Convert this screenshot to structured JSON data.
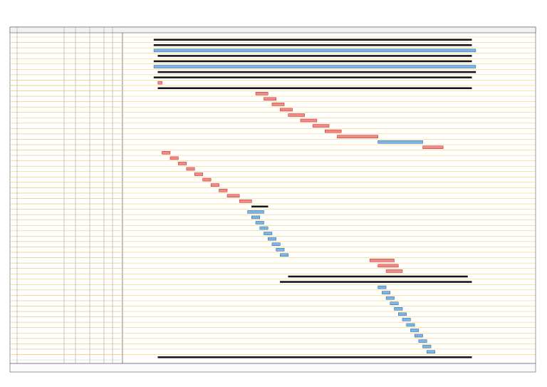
{
  "gantt": {
    "timeline": [
      0,
      100
    ],
    "colors": {
      "summary": "#1a1a1a",
      "critical": "#f08a8a",
      "normal": "#7fb3e0"
    },
    "strokes": {
      "summary": "#000000",
      "critical": "#c41e1e",
      "normal": "#1f5fa0"
    },
    "tasks": [
      {
        "start": 7,
        "end": 85,
        "kind": "summary"
      },
      {
        "start": 7,
        "end": 85,
        "kind": "summary"
      },
      {
        "start": 7,
        "end": 86,
        "kind": "normal"
      },
      {
        "start": 8,
        "end": 85,
        "kind": "summary"
      },
      {
        "start": 7,
        "end": 85,
        "kind": "summary"
      },
      {
        "start": 7,
        "end": 86,
        "kind": "normal"
      },
      {
        "start": 8,
        "end": 86,
        "kind": "summary"
      },
      {
        "start": 7,
        "end": 85,
        "kind": "summary"
      },
      {
        "start": 8,
        "end": 9,
        "kind": "critical"
      },
      {
        "start": 8,
        "end": 85,
        "kind": "summary"
      },
      {
        "start": 32,
        "end": 35,
        "kind": "critical"
      },
      {
        "start": 34,
        "end": 37,
        "kind": "critical"
      },
      {
        "start": 36,
        "end": 39,
        "kind": "critical"
      },
      {
        "start": 38,
        "end": 41,
        "kind": "critical"
      },
      {
        "start": 40,
        "end": 44,
        "kind": "critical"
      },
      {
        "start": 43,
        "end": 47,
        "kind": "critical"
      },
      {
        "start": 46,
        "end": 50,
        "kind": "critical"
      },
      {
        "start": 49,
        "end": 53,
        "kind": "critical"
      },
      {
        "start": 52,
        "end": 62,
        "kind": "critical"
      },
      {
        "start": 62,
        "end": 73,
        "kind": "normal"
      },
      {
        "start": 73,
        "end": 78,
        "kind": "critical"
      },
      {
        "start": 9,
        "end": 11,
        "kind": "critical"
      },
      {
        "start": 11,
        "end": 13,
        "kind": "critical"
      },
      {
        "start": 13,
        "end": 15,
        "kind": "critical"
      },
      {
        "start": 15,
        "end": 17,
        "kind": "critical"
      },
      {
        "start": 17,
        "end": 19,
        "kind": "critical"
      },
      {
        "start": 19,
        "end": 21,
        "kind": "critical"
      },
      {
        "start": 21,
        "end": 23,
        "kind": "critical"
      },
      {
        "start": 23,
        "end": 25,
        "kind": "critical"
      },
      {
        "start": 25,
        "end": 28,
        "kind": "critical"
      },
      {
        "start": 28,
        "end": 31,
        "kind": "critical"
      },
      {
        "start": 31,
        "end": 35,
        "kind": "summary"
      },
      {
        "start": 30,
        "end": 34,
        "kind": "normal"
      },
      {
        "start": 31,
        "end": 33,
        "kind": "normal"
      },
      {
        "start": 32,
        "end": 34,
        "kind": "normal"
      },
      {
        "start": 33,
        "end": 35,
        "kind": "normal"
      },
      {
        "start": 34,
        "end": 36,
        "kind": "normal"
      },
      {
        "start": 35,
        "end": 37,
        "kind": "normal"
      },
      {
        "start": 36,
        "end": 38,
        "kind": "normal"
      },
      {
        "start": 37,
        "end": 39,
        "kind": "normal"
      },
      {
        "start": 38,
        "end": 40,
        "kind": "normal"
      },
      {
        "start": 60,
        "end": 66,
        "kind": "critical"
      },
      {
        "start": 62,
        "end": 67,
        "kind": "critical"
      },
      {
        "start": 64,
        "end": 68,
        "kind": "critical"
      },
      {
        "start": 40,
        "end": 84,
        "kind": "summary"
      },
      {
        "start": 38,
        "end": 85,
        "kind": "summary"
      },
      {
        "start": 62,
        "end": 64,
        "kind": "normal"
      },
      {
        "start": 63,
        "end": 65,
        "kind": "normal"
      },
      {
        "start": 64,
        "end": 66,
        "kind": "normal"
      },
      {
        "start": 65,
        "end": 67,
        "kind": "normal"
      },
      {
        "start": 66,
        "end": 68,
        "kind": "normal"
      },
      {
        "start": 67,
        "end": 69,
        "kind": "normal"
      },
      {
        "start": 68,
        "end": 70,
        "kind": "normal"
      },
      {
        "start": 69,
        "end": 71,
        "kind": "normal"
      },
      {
        "start": 70,
        "end": 72,
        "kind": "normal"
      },
      {
        "start": 71,
        "end": 73,
        "kind": "normal"
      },
      {
        "start": 72,
        "end": 74,
        "kind": "normal"
      },
      {
        "start": 73,
        "end": 75,
        "kind": "normal"
      },
      {
        "start": 74,
        "end": 76,
        "kind": "normal"
      },
      {
        "start": 8,
        "end": 85,
        "kind": "summary"
      }
    ]
  }
}
